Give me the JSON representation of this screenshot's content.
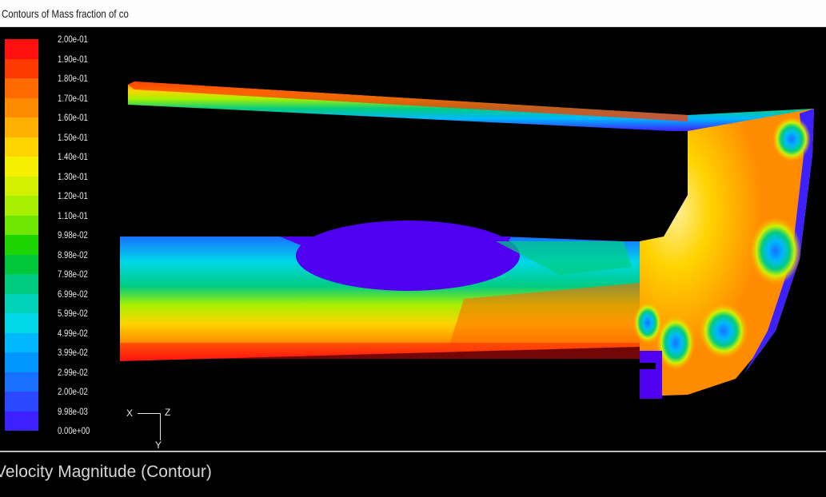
{
  "window": {
    "title": "Contours of Mass fraction of co"
  },
  "colormap": {
    "labels": [
      "2.00e-01",
      "1.90e-01",
      "1.80e-01",
      "1.70e-01",
      "1.60e-01",
      "1.50e-01",
      "1.40e-01",
      "1.30e-01",
      "1.20e-01",
      "1.10e-01",
      "9.98e-02",
      "8.98e-02",
      "7.98e-02",
      "6.99e-02",
      "5.99e-02",
      "4.99e-02",
      "3.99e-02",
      "2.99e-02",
      "2.00e-02",
      "9.98e-03",
      "0.00e+00"
    ],
    "colors": [
      "#ff1010",
      "#ff3a00",
      "#ff6a00",
      "#ff8c00",
      "#ffb000",
      "#ffd400",
      "#f4f000",
      "#d2f000",
      "#a8f000",
      "#6ee600",
      "#1ed400",
      "#00c83a",
      "#00cc80",
      "#00d4b8",
      "#00d8e8",
      "#00b8ff",
      "#0096ff",
      "#1870ff",
      "#2a48ff",
      "#3c20ff",
      "#5000f0"
    ]
  },
  "axes": {
    "x": "X",
    "z": "Z",
    "y": "Y"
  },
  "status": {
    "text": "Velocity Magnitude (Contour)"
  }
}
